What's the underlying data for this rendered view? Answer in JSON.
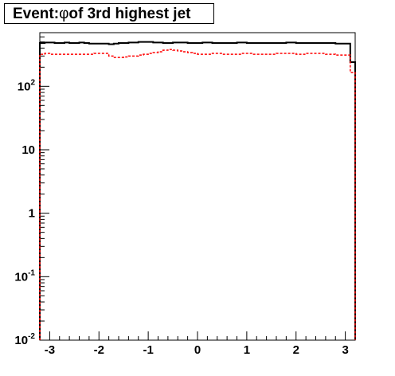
{
  "title": {
    "prefix": "Event: ",
    "symbol": "φ",
    "suffix": " of 3rd highest jet"
  },
  "chart_data": {
    "type": "line",
    "title": "Event: φ of 3rd highest jet",
    "xlabel": "",
    "ylabel": "",
    "xlim": [
      -3.2,
      3.2
    ],
    "ylim": [
      0.01,
      700
    ],
    "y_scale": "log",
    "grid": false,
    "x_ticks": [
      "-3",
      "-2",
      "-1",
      "0",
      "1",
      "2",
      "3"
    ],
    "y_ticks": [
      {
        "base": "10",
        "exp": "-2"
      },
      {
        "base": "10",
        "exp": "-1"
      },
      {
        "base": "1",
        "exp": ""
      },
      {
        "base": "10",
        "exp": ""
      },
      {
        "base": "10",
        "exp": "2"
      }
    ],
    "series": [
      {
        "style": "solid",
        "color": "#000000",
        "values": [
          480,
          490,
          490,
          480,
          480,
          490,
          480,
          480,
          490,
          480,
          470,
          470,
          470,
          470,
          460,
          470,
          480,
          480,
          490,
          490,
          500,
          500,
          500,
          490,
          490,
          480,
          480,
          490,
          490,
          490,
          480,
          480,
          480,
          490,
          490,
          480,
          480,
          480,
          480,
          480,
          490,
          490,
          480,
          480,
          480,
          480,
          480,
          480,
          480,
          480,
          490,
          490,
          480,
          480,
          480,
          480,
          480,
          480,
          480,
          480,
          470,
          470,
          470,
          240
        ]
      },
      {
        "style": "dashed",
        "color": "#ff0000",
        "values": [
          320,
          330,
          320,
          320,
          320,
          320,
          320,
          320,
          320,
          320,
          320,
          330,
          330,
          330,
          300,
          285,
          285,
          290,
          300,
          300,
          310,
          320,
          330,
          340,
          350,
          370,
          380,
          370,
          360,
          350,
          340,
          330,
          320,
          320,
          320,
          330,
          330,
          320,
          320,
          320,
          320,
          330,
          330,
          320,
          320,
          320,
          320,
          320,
          330,
          330,
          330,
          330,
          320,
          320,
          330,
          330,
          330,
          330,
          320,
          320,
          310,
          310,
          310,
          165
        ]
      }
    ]
  },
  "colors": {
    "frame": "#000000",
    "series_1": "#000000",
    "series_2": "#ff0000"
  }
}
